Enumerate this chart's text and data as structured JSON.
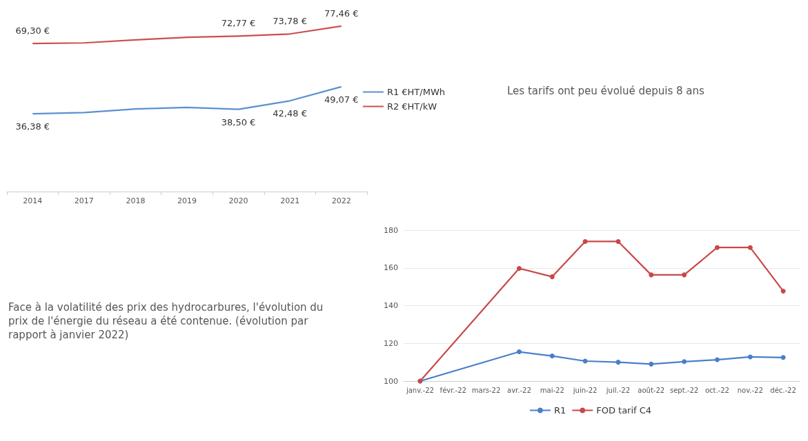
{
  "chart_data": [
    {
      "type": "line",
      "categories": [
        "2014",
        "2017",
        "2018",
        "2019",
        "2020",
        "2021",
        "2022"
      ],
      "legend": "right",
      "grid": false,
      "marker": "none",
      "annotations": [
        "Les tarifs ont peu évolué depuis 8 ans"
      ],
      "series": [
        {
          "name": "R1 €HT/MWh",
          "color": "#5b8fd0",
          "values": [
            36.38,
            37.0,
            38.7,
            39.4,
            38.5,
            42.48,
            49.07
          ],
          "value_labels": [
            "36,38 €",
            null,
            null,
            null,
            "38,50 €",
            "42,48 €",
            "49,07 €"
          ]
        },
        {
          "name": "R2 €HT/kW",
          "color": "#cc4e4e",
          "values": [
            69.3,
            69.6,
            71.0,
            72.2,
            72.77,
            73.78,
            77.46
          ],
          "value_labels": [
            "69,30 €",
            null,
            null,
            null,
            "72,77 €",
            "73,78 €",
            "77,46 €"
          ]
        }
      ]
    },
    {
      "type": "line",
      "categories": [
        "janv.-22",
        "févr.-22",
        "mars-22",
        "avr.-22",
        "mai-22",
        "juin-22",
        "juil.-22",
        "août-22",
        "sept.-22",
        "oct.-22",
        "nov.-22",
        "déc.-22"
      ],
      "ylim": [
        100,
        180
      ],
      "yticks": [
        100,
        120,
        140,
        160,
        180
      ],
      "grid": "y",
      "legend": "bottom",
      "marker": "circle",
      "annotations": [
        "Face à la volatilité des prix des hydrocarbures, l'évolution du prix de l'énergie du réseau a été contenue. (évolution par rapport à janvier 2022)"
      ],
      "series": [
        {
          "name": "R1",
          "color": "#4a7fc8",
          "values": [
            100,
            null,
            null,
            115.5,
            113.3,
            110.6,
            110,
            109,
            110.3,
            111.3,
            112.8,
            112.5
          ]
        },
        {
          "name": "FOD tarif C4",
          "color": "#c84848",
          "values": [
            100,
            null,
            null,
            159.7,
            155.3,
            174,
            174,
            156.3,
            156.3,
            170.8,
            170.8,
            147.7
          ]
        }
      ]
    }
  ]
}
